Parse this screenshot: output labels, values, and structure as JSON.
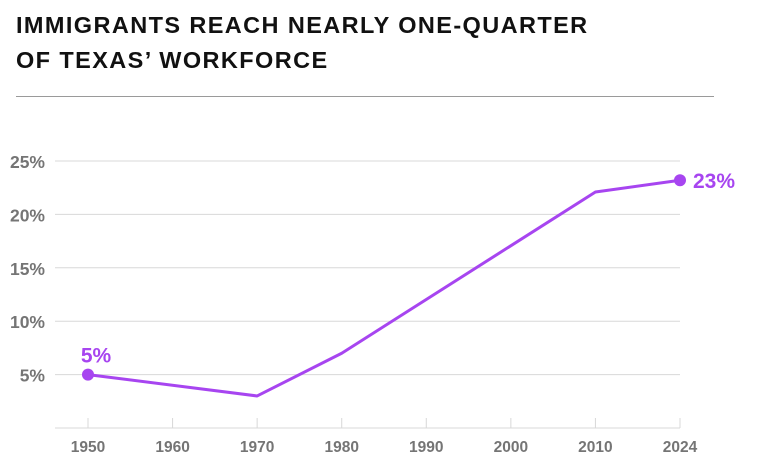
{
  "title": {
    "line1": "IMMIGRANTS REACH NEARLY ONE-QUARTER",
    "line2": "OF TEXAS’ WORKFORCE"
  },
  "colors": {
    "accent": "#A745F0",
    "title": "#111111",
    "grid": "#d8d8d8",
    "axis_label": "#757575",
    "rule": "#9a9a9a"
  },
  "chart_data": {
    "type": "line",
    "title": "",
    "xlabel": "",
    "ylabel": "",
    "x_ticks": [
      "1950",
      "1960",
      "1970",
      "1980",
      "1990",
      "2000",
      "2010",
      "2024"
    ],
    "y_ticks": [
      "5%",
      "10%",
      "15%",
      "20%",
      "25%"
    ],
    "ylim": [
      0,
      25
    ],
    "grid": true,
    "series": [
      {
        "name": "",
        "x": [
          "1950",
          "1970",
          "1980",
          "2010",
          "2024"
        ],
        "values": [
          5,
          3,
          7,
          22.1,
          23.2
        ]
      }
    ],
    "annotations": [
      {
        "x": "1950",
        "value": 5,
        "label": "5%"
      },
      {
        "x": "2024",
        "value": 23.2,
        "label": "23%"
      }
    ]
  }
}
